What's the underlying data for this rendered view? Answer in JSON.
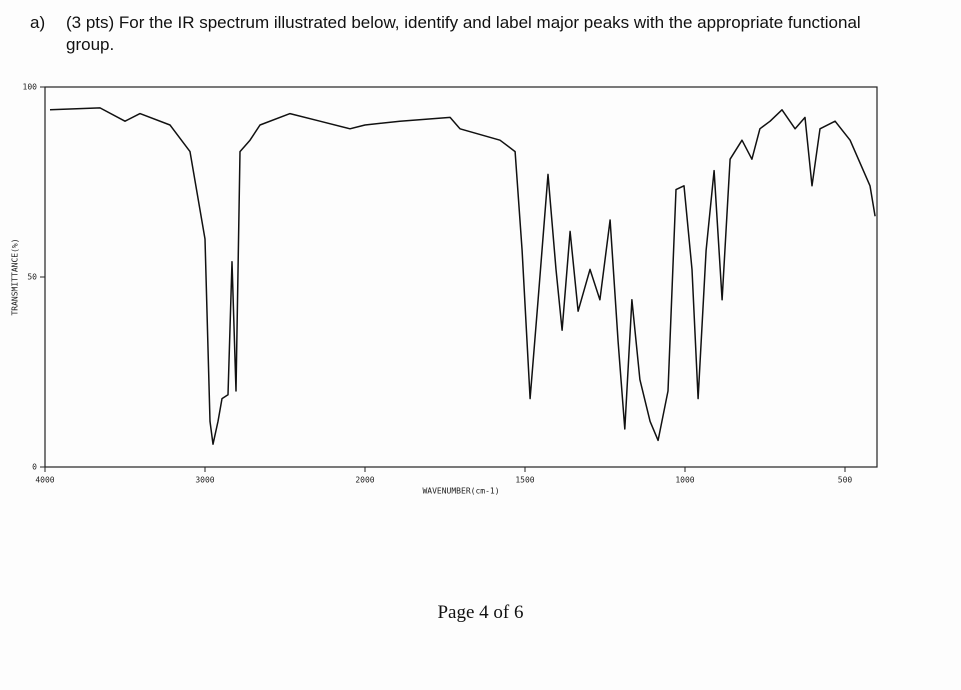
{
  "question": {
    "label": "a)",
    "text": "(3 pts) For the IR spectrum illustrated below, identify and label major peaks with the appropriate functional group."
  },
  "chart_data": {
    "type": "line",
    "x_label": "WAVENUMBER(cm-1)",
    "y_label": "TRANSMITTANCE(%)",
    "xlim": [
      4000,
      400
    ],
    "xticks": [
      4000,
      3000,
      2000,
      1500,
      1000,
      500
    ],
    "ylim": [
      0,
      100
    ],
    "yticks": [
      0,
      50,
      100
    ],
    "color": "#111111",
    "x": [
      3969,
      3656,
      3500,
      3406,
      3219,
      3094,
      3000,
      2969,
      2950,
      2919,
      2894,
      2856,
      2831,
      2806,
      2781,
      2719,
      2656,
      2469,
      2281,
      2094,
      2000,
      1891,
      1734,
      1703,
      1578,
      1531,
      1509,
      1484,
      1459,
      1428,
      1403,
      1384,
      1359,
      1334,
      1297,
      1266,
      1234,
      1209,
      1188,
      1166,
      1141,
      1109,
      1084,
      1053,
      1028,
      1003,
      978,
      959,
      934,
      909,
      884,
      859,
      822,
      791,
      766,
      734,
      697,
      656,
      625,
      603,
      578,
      531,
      484,
      422,
      406
    ],
    "values": [
      94,
      94.5,
      91,
      93,
      90,
      83,
      60,
      12,
      6,
      12,
      18,
      19,
      54,
      20,
      83,
      86,
      90,
      93,
      91,
      89,
      90,
      91,
      92,
      89,
      86,
      83,
      57,
      18,
      44,
      77,
      52,
      36,
      62,
      41,
      52,
      44,
      65,
      33,
      10,
      44,
      23,
      12,
      7,
      20,
      73,
      74,
      52,
      18,
      57,
      78,
      44,
      81,
      86,
      81,
      89,
      91,
      94,
      89,
      92,
      74,
      89,
      91,
      86,
      74,
      66
    ]
  },
  "footer": "Page 4 of 6"
}
